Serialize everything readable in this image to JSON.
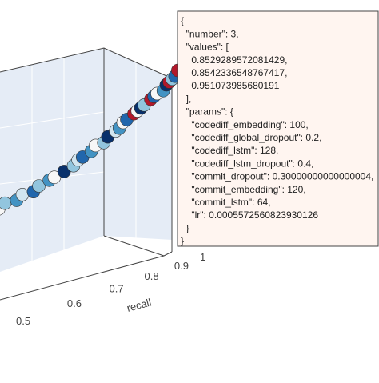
{
  "chart_data": {
    "type": "scatter3d",
    "x_label": "recall",
    "xlim": [
      0.5,
      1
    ],
    "xticks": [
      0.5,
      0.6,
      0.7,
      0.8,
      0.9,
      1
    ],
    "ylim": [
      0.46,
      0.95
    ],
    "x": [
      0.46,
      0.47,
      0.49,
      0.5,
      0.52,
      0.53,
      0.55,
      0.56,
      0.58,
      0.6,
      0.61,
      0.62,
      0.64,
      0.65,
      0.67,
      0.68,
      0.7,
      0.71,
      0.72,
      0.73,
      0.75,
      0.76,
      0.77,
      0.78,
      0.8,
      0.81,
      0.82,
      0.84,
      0.85,
      0.86,
      0.87,
      0.88,
      0.89
    ],
    "y": [
      0.47,
      0.49,
      0.5,
      0.52,
      0.53,
      0.55,
      0.57,
      0.58,
      0.6,
      0.62,
      0.64,
      0.65,
      0.67,
      0.69,
      0.7,
      0.72,
      0.74,
      0.75,
      0.77,
      0.78,
      0.8,
      0.81,
      0.82,
      0.83,
      0.85,
      0.86,
      0.87,
      0.88,
      0.9,
      0.91,
      0.92,
      0.93,
      0.95
    ],
    "colors": [
      "#f7f7f7",
      "#92c5de",
      "#4393c3",
      "#d1e5f0",
      "#2166ac",
      "#92c5de",
      "#4393c3",
      "#f7f7f7",
      "#08306b",
      "#92c5de",
      "#d1e5f0",
      "#2166ac",
      "#4393c3",
      "#f7f7f7",
      "#92c5de",
      "#08306b",
      "#d1e5f0",
      "#4393c3",
      "#f7f7f7",
      "#2166ac",
      "#b2182b",
      "#f7f7f7",
      "#08306b",
      "#92c5de",
      "#b2182b",
      "#2166ac",
      "#f7f7f7",
      "#4393c3",
      "#08306b",
      "#b2182b",
      "#92c5de",
      "#2166ac",
      "#b2182b"
    ],
    "tooltip_lines": [
      "{",
      "  \"number\": 3,",
      "  \"values\": [",
      "    0.8529289572081429,",
      "    0.8542336548767417,",
      "    0.951073985680191",
      "  ],",
      "  \"params\": {",
      "    \"codediff_embedding\": 100,",
      "    \"codediff_global_dropout\": 0.2,",
      "    \"codediff_lstm\": 128,",
      "    \"codediff_lstm_dropout\": 0.4,",
      "    \"commit_dropout\": 0.30000000000000004,",
      "    \"commit_embedding\": 120,",
      "    \"commit_lstm\": 64,",
      "    \"lr\": 0.0005572560823930126",
      "  }",
      "}"
    ]
  }
}
